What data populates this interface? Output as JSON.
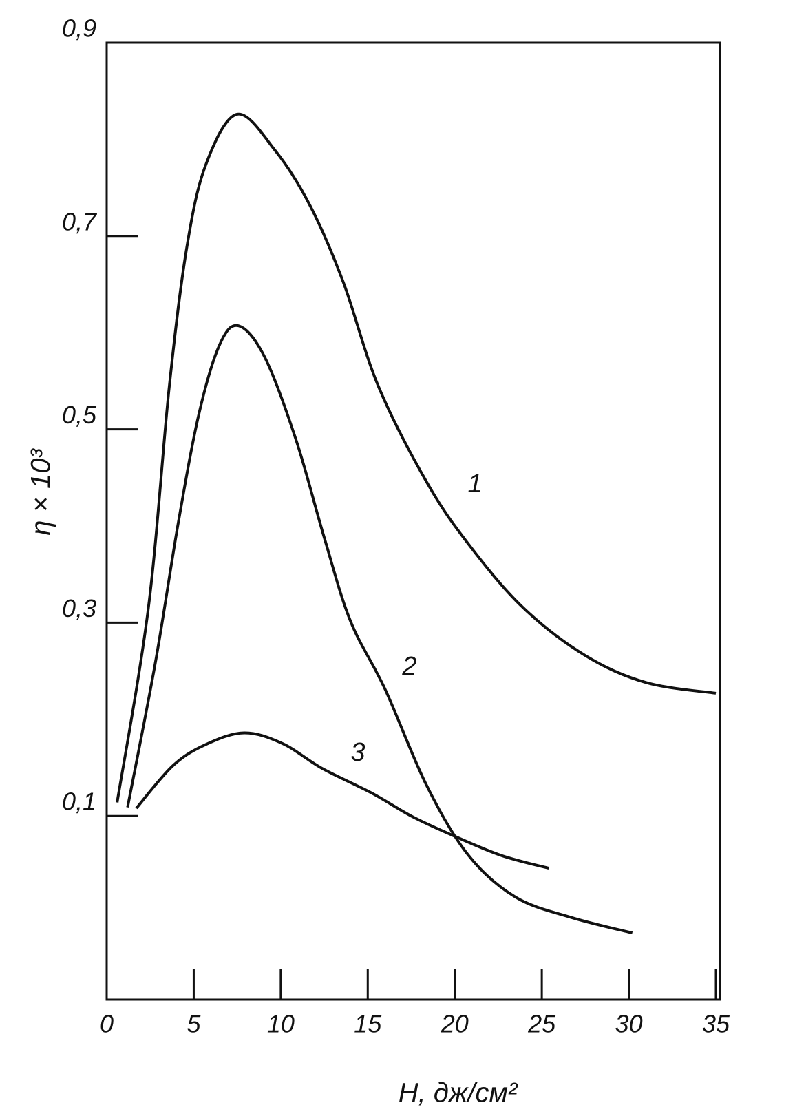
{
  "chart_data": {
    "type": "line",
    "xlabel": "H, дж/см²",
    "ylabel": "η × 10³",
    "xlim": [
      0,
      35
    ],
    "ylim": [
      -0.09,
      0.9
    ],
    "xticks": [
      0,
      5,
      10,
      15,
      20,
      25,
      30,
      35
    ],
    "yticks": [
      {
        "value": 0.1,
        "label": "0,1"
      },
      {
        "value": 0.3,
        "label": "0,3"
      },
      {
        "value": 0.5,
        "label": "0,5"
      },
      {
        "value": 0.7,
        "label": "0,7"
      },
      {
        "value": 0.9,
        "label": "0,9"
      }
    ],
    "grid": false,
    "series": [
      {
        "name": "1",
        "color": "#111111",
        "x": [
          0.6,
          2.4,
          3.6,
          4.6,
          5.7,
          7.5,
          9.7,
          11.7,
          13.6,
          15.6,
          18.4,
          20.8,
          23.9,
          27.5,
          31,
          35
        ],
        "values": [
          0.114,
          0.316,
          0.545,
          0.688,
          0.774,
          0.826,
          0.788,
          0.731,
          0.652,
          0.545,
          0.445,
          0.381,
          0.316,
          0.266,
          0.238,
          0.227
        ]
      },
      {
        "name": "2",
        "color": "#111111",
        "x": [
          1.2,
          2.8,
          4.1,
          5.3,
          6.5,
          7.6,
          9.1,
          10.9,
          12.5,
          14.0,
          16.0,
          18.4,
          20.8,
          23.5,
          26.7,
          30.2
        ],
        "values": [
          0.109,
          0.259,
          0.402,
          0.516,
          0.588,
          0.607,
          0.574,
          0.488,
          0.388,
          0.302,
          0.231,
          0.131,
          0.059,
          0.016,
          -0.005,
          -0.021
        ]
      },
      {
        "name": "3",
        "color": "#111111",
        "x": [
          1.7,
          3.8,
          5.7,
          7.9,
          10.1,
          12.4,
          15.2,
          17.6,
          20,
          22.7,
          25.4
        ],
        "values": [
          0.108,
          0.152,
          0.174,
          0.186,
          0.175,
          0.149,
          0.124,
          0.099,
          0.079,
          0.059,
          0.046
        ]
      }
    ]
  }
}
